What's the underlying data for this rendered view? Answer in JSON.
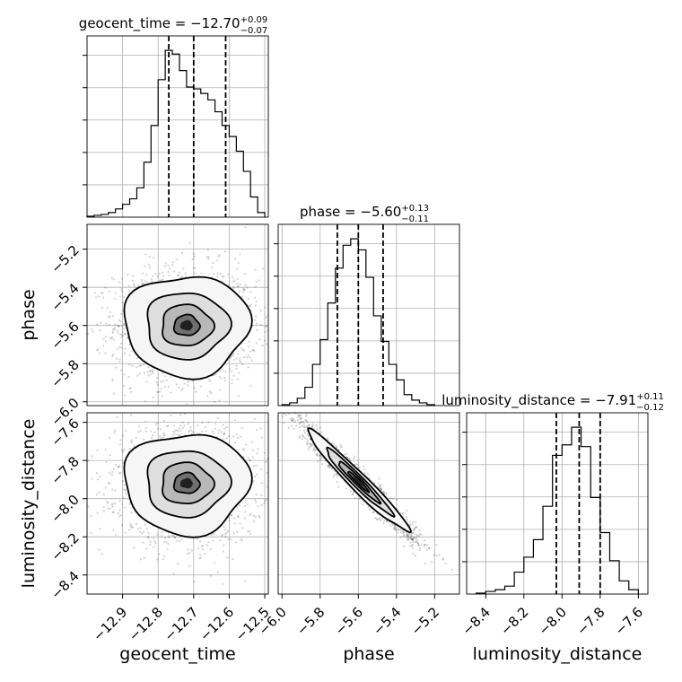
{
  "chart_data": {
    "type": "corner",
    "parameters": [
      "geocent_time",
      "phase",
      "luminosity_distance"
    ],
    "titles": [
      {
        "param": "geocent_time",
        "prefix": "geocent_time = ",
        "value": "−12.70",
        "plus": "+0.09",
        "minus": "−0.07"
      },
      {
        "param": "phase",
        "prefix": "phase = ",
        "value": "−5.60",
        "plus": "+0.13",
        "minus": "−0.11"
      },
      {
        "param": "luminosity_distance",
        "prefix": "luminosity_distance = ",
        "value": "−7.91",
        "plus": "+0.11",
        "minus": "−0.12"
      }
    ],
    "ranges": {
      "geocent_time": [
        -13.0,
        -12.49
      ],
      "phase": [
        -6.02,
        -5.07
      ],
      "luminosity_distance": [
        -8.5,
        -7.55
      ]
    },
    "ticks": {
      "geocent_time": [
        -12.9,
        -12.8,
        -12.7,
        -12.6,
        -12.5
      ],
      "phase": [
        -6.0,
        -5.8,
        -5.6,
        -5.4,
        -5.2
      ],
      "luminosity_distance": [
        -8.4,
        -8.2,
        -8.0,
        -7.8,
        -7.6
      ]
    },
    "tick_labels": {
      "geocent_time": [
        "−12.9",
        "−12.8",
        "−12.7",
        "−12.6",
        "−12.5"
      ],
      "phase": [
        "−6.0",
        "−5.8",
        "−5.6",
        "−5.4",
        "−5.2"
      ],
      "luminosity_distance": [
        "−8.4",
        "−8.2",
        "−8.0",
        "−7.8",
        "−7.6"
      ]
    },
    "quantiles": {
      "geocent_time": [
        -12.77,
        -12.7,
        -12.61
      ],
      "phase": [
        -5.71,
        -5.6,
        -5.47
      ],
      "luminosity_distance": [
        -8.03,
        -7.91,
        -7.8
      ]
    },
    "histograms": {
      "geocent_time": {
        "edges": [
          -13.0,
          -12.98,
          -12.96,
          -12.94,
          -12.92,
          -12.9,
          -12.88,
          -12.86,
          -12.84,
          -12.82,
          -12.8,
          -12.78,
          -12.76,
          -12.74,
          -12.72,
          -12.7,
          -12.68,
          -12.66,
          -12.64,
          -12.62,
          -12.6,
          -12.58,
          -12.56,
          -12.54,
          -12.52,
          -12.5
        ],
        "counts": [
          1,
          2,
          3,
          5,
          9,
          14,
          20,
          32,
          60,
          100,
          150,
          182,
          178,
          160,
          142,
          140,
          135,
          128,
          115,
          100,
          88,
          72,
          50,
          22,
          5
        ]
      },
      "phase": {
        "edges": [
          -6.0,
          -5.96,
          -5.92,
          -5.88,
          -5.84,
          -5.8,
          -5.76,
          -5.72,
          -5.68,
          -5.64,
          -5.6,
          -5.56,
          -5.52,
          -5.48,
          -5.44,
          -5.4,
          -5.36,
          -5.32,
          -5.28,
          -5.24,
          -5.2
        ],
        "counts": [
          1,
          3,
          8,
          20,
          45,
          72,
          112,
          150,
          175,
          182,
          170,
          140,
          98,
          70,
          45,
          28,
          12,
          6,
          3,
          1
        ]
      },
      "luminosity_distance": {
        "edges": [
          -8.45,
          -8.4,
          -8.35,
          -8.3,
          -8.25,
          -8.2,
          -8.15,
          -8.1,
          -8.05,
          -8.0,
          -7.95,
          -7.9,
          -7.85,
          -7.8,
          -7.75,
          -7.7,
          -7.65,
          -7.6
        ],
        "counts": [
          1,
          3,
          5,
          9,
          25,
          42,
          62,
          100,
          158,
          170,
          190,
          168,
          110,
          70,
          38,
          15,
          5
        ]
      }
    },
    "density": {
      "geocent_time|phase": {
        "mean": [
          -12.72,
          -5.6
        ],
        "sd": [
          0.08,
          0.12
        ],
        "rho": 0.0
      },
      "geocent_time|luminosity_distance": {
        "mean": [
          -12.72,
          -7.92
        ],
        "sd": [
          0.08,
          0.12
        ],
        "rho": 0.0
      },
      "phase|luminosity_distance": {
        "mean": [
          -5.6,
          -7.91
        ],
        "sd": [
          0.12,
          0.12
        ],
        "rho": -0.97
      }
    },
    "grid": true
  }
}
